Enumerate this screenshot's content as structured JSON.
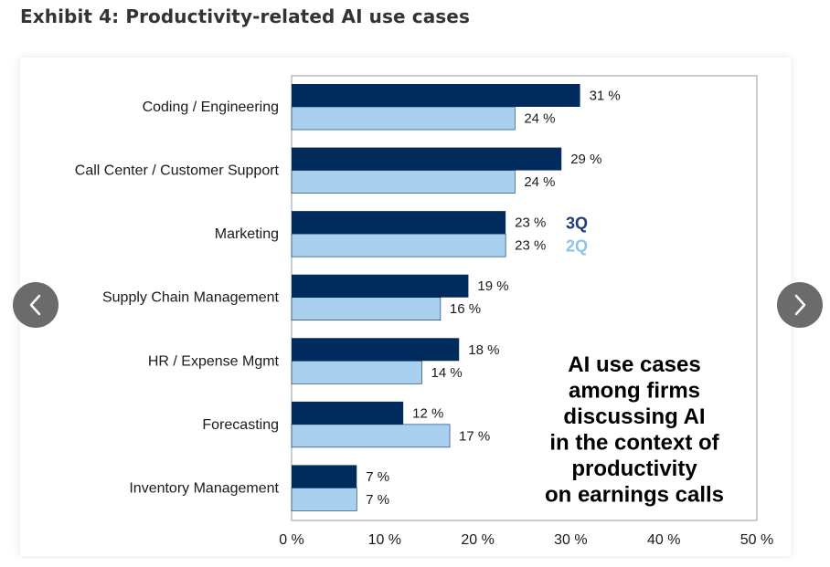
{
  "header": {
    "title": "Exhibit 4: Productivity-related AI use cases"
  },
  "carousel": {
    "prev_icon": "chevron-left-icon",
    "next_icon": "chevron-right-icon"
  },
  "colors": {
    "series_3q": "#002b5c",
    "series_2q": "#a9d1ef",
    "legend_3q_text": "#1f3d7a",
    "legend_2q_text": "#8ec3ea",
    "frame": "#9a9a9a"
  },
  "chart_data": {
    "type": "bar",
    "orientation": "horizontal",
    "categories": [
      "Coding / Engineering",
      "Call Center / Customer Support",
      "Marketing",
      "Supply Chain Management",
      "HR / Expense Mgmt",
      "Forecasting",
      "Inventory Management"
    ],
    "series": [
      {
        "name": "3Q",
        "values": [
          31,
          29,
          23,
          19,
          18,
          12,
          7
        ],
        "labels": [
          "31 %",
          "29 %",
          "23 %",
          "19 %",
          "18 %",
          "12 %",
          "7 %"
        ]
      },
      {
        "name": "2Q",
        "values": [
          24,
          24,
          23,
          16,
          14,
          17,
          7
        ],
        "labels": [
          "24 %",
          "24 %",
          "23 %",
          "16 %",
          "14 %",
          "17 %",
          "7 %"
        ]
      }
    ],
    "xlim": [
      0,
      50
    ],
    "xticks": [
      0,
      10,
      20,
      30,
      40,
      50
    ],
    "xtick_labels": [
      "0 %",
      "10 %",
      "20 %",
      "30 %",
      "40 %",
      "50 %"
    ],
    "legend": {
      "placement": "inline next to Marketing bars",
      "entries": [
        "3Q",
        "2Q"
      ]
    },
    "annotation": [
      "AI use cases",
      "among firms",
      "discussing AI",
      "in the context of",
      "productivity",
      "on earnings calls"
    ],
    "grid": false
  }
}
